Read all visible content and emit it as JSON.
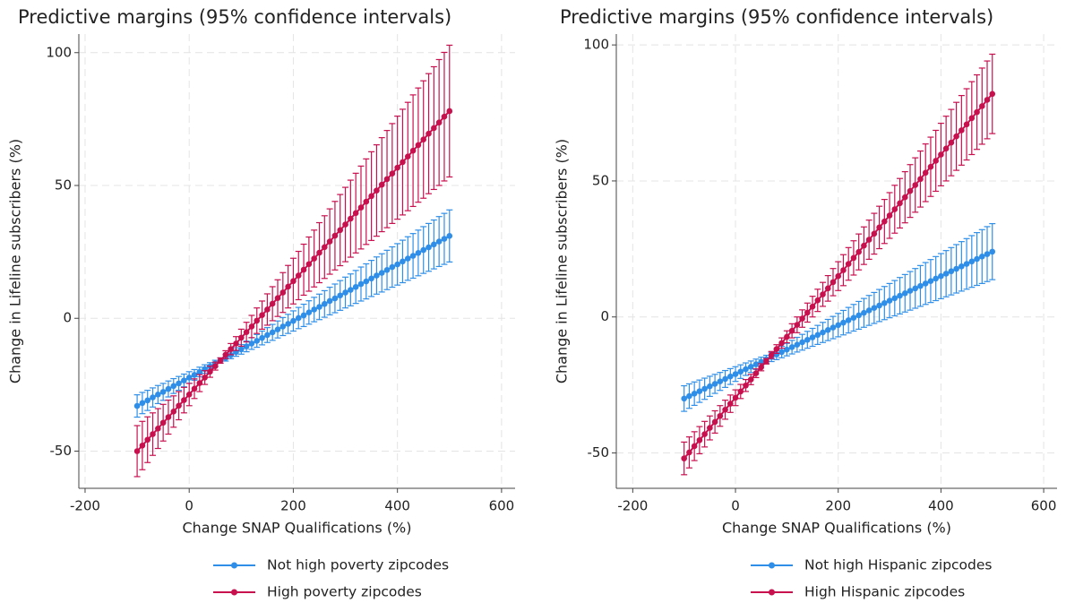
{
  "chart_data": [
    {
      "type": "line",
      "title": "Predictive margins (95% confidence intervals)",
      "xlabel": "Change SNAP Qualifications (%)",
      "ylabel": "Change in Lifeline subscribers (%)",
      "x": [
        -100,
        -90,
        -80,
        -70,
        -60,
        -50,
        -40,
        -30,
        -20,
        -10,
        0,
        10,
        20,
        30,
        40,
        50,
        60,
        70,
        80,
        90,
        100,
        110,
        120,
        130,
        140,
        150,
        160,
        170,
        180,
        190,
        200,
        210,
        220,
        230,
        240,
        250,
        260,
        270,
        280,
        290,
        300,
        310,
        320,
        330,
        340,
        350,
        360,
        370,
        380,
        390,
        400,
        410,
        420,
        430,
        440,
        450,
        460,
        470,
        480,
        490,
        500
      ],
      "series": [
        {
          "name": "Not high poverty zipcodes",
          "color": "#2f8fe8",
          "values": [
            -33.0,
            -31.9,
            -30.9,
            -29.8,
            -28.7,
            -27.7,
            -26.6,
            -25.5,
            -24.5,
            -23.4,
            -22.3,
            -21.3,
            -20.2,
            -19.1,
            -18.1,
            -17.0,
            -15.9,
            -14.9,
            -13.8,
            -12.7,
            -11.7,
            -10.6,
            -9.5,
            -8.5,
            -7.4,
            -6.3,
            -5.3,
            -4.2,
            -3.1,
            -2.1,
            -1.0,
            0.1,
            1.1,
            2.2,
            3.3,
            4.3,
            5.4,
            6.5,
            7.5,
            8.6,
            9.7,
            10.7,
            11.8,
            12.9,
            13.9,
            15.0,
            16.1,
            17.1,
            18.2,
            19.3,
            20.3,
            21.4,
            22.5,
            23.5,
            24.6,
            25.7,
            26.7,
            27.8,
            28.9,
            29.9,
            31.0
          ],
          "errors": [
            4.2,
            4.0,
            3.8,
            3.6,
            3.4,
            3.2,
            3.0,
            2.8,
            2.6,
            2.4,
            2.2,
            2.0,
            1.8,
            1.6,
            1.4,
            1.2,
            1.0,
            1.2,
            1.4,
            1.6,
            1.8,
            2.0,
            2.2,
            2.4,
            2.6,
            2.8,
            3.0,
            3.2,
            3.4,
            3.6,
            3.8,
            4.0,
            4.2,
            4.4,
            4.6,
            4.8,
            5.0,
            5.2,
            5.4,
            5.6,
            5.8,
            6.0,
            6.2,
            6.4,
            6.6,
            6.8,
            7.0,
            7.2,
            7.4,
            7.6,
            7.8,
            8.0,
            8.2,
            8.4,
            8.6,
            8.8,
            9.0,
            9.2,
            9.4,
            9.6,
            9.8
          ]
        },
        {
          "name": "High poverty zipcodes",
          "color": "#c8104f",
          "values": [
            -50.0,
            -47.9,
            -45.7,
            -43.6,
            -41.5,
            -39.3,
            -37.2,
            -35.1,
            -32.9,
            -30.8,
            -28.7,
            -26.5,
            -24.4,
            -22.3,
            -20.1,
            -18.0,
            -15.9,
            -13.7,
            -11.6,
            -9.5,
            -7.3,
            -5.2,
            -3.1,
            -0.9,
            1.2,
            3.3,
            5.5,
            7.6,
            9.7,
            11.9,
            14.0,
            16.1,
            18.3,
            20.4,
            22.5,
            24.7,
            26.8,
            28.9,
            31.1,
            33.2,
            35.3,
            37.5,
            39.6,
            41.7,
            43.9,
            46.0,
            48.1,
            50.3,
            52.4,
            54.5,
            56.7,
            58.8,
            60.9,
            63.1,
            65.2,
            67.3,
            69.5,
            71.6,
            73.7,
            75.9,
            78.0
          ],
          "errors": [
            9.6,
            9.1,
            8.6,
            8.0,
            7.5,
            6.9,
            6.4,
            5.9,
            5.3,
            4.8,
            4.2,
            3.7,
            3.2,
            2.6,
            2.1,
            1.5,
            1.0,
            1.5,
            2.1,
            2.6,
            3.2,
            3.7,
            4.2,
            4.8,
            5.3,
            5.9,
            6.4,
            6.9,
            7.5,
            8.0,
            8.6,
            9.1,
            9.6,
            10.2,
            10.7,
            11.3,
            11.8,
            12.3,
            12.9,
            13.4,
            14.0,
            14.5,
            15.0,
            15.6,
            16.1,
            16.7,
            17.2,
            17.7,
            18.3,
            18.8,
            19.4,
            19.9,
            20.4,
            21.0,
            21.5,
            22.1,
            22.6,
            23.1,
            23.7,
            24.2,
            24.8
          ]
        }
      ],
      "xlim": [
        -212,
        626
      ],
      "ylim": [
        -64,
        107
      ],
      "xticks": [
        -200,
        0,
        200,
        400,
        600
      ],
      "yticks": [
        -50,
        0,
        50,
        100
      ],
      "grid": true,
      "legend": "bottom"
    },
    {
      "type": "line",
      "title": "Predictive margins (95% confidence intervals)",
      "xlabel": "Change SNAP Qualifications (%)",
      "ylabel": "Change in Lifeline subscribers (%)",
      "x": [
        -100,
        -90,
        -80,
        -70,
        -60,
        -50,
        -40,
        -30,
        -20,
        -10,
        0,
        10,
        20,
        30,
        40,
        50,
        60,
        70,
        80,
        90,
        100,
        110,
        120,
        130,
        140,
        150,
        160,
        170,
        180,
        190,
        200,
        210,
        220,
        230,
        240,
        250,
        260,
        270,
        280,
        290,
        300,
        310,
        320,
        330,
        340,
        350,
        360,
        370,
        380,
        390,
        400,
        410,
        420,
        430,
        440,
        450,
        460,
        470,
        480,
        490,
        500
      ],
      "series": [
        {
          "name": "Not high Hispanic zipcodes",
          "color": "#2f8fe8",
          "values": [
            -30.0,
            -29.1,
            -28.2,
            -27.3,
            -26.4,
            -25.5,
            -24.6,
            -23.7,
            -22.8,
            -21.9,
            -21.0,
            -20.1,
            -19.2,
            -18.3,
            -17.4,
            -16.5,
            -15.6,
            -14.7,
            -13.8,
            -12.9,
            -12.0,
            -11.1,
            -10.2,
            -9.3,
            -8.4,
            -7.5,
            -6.6,
            -5.7,
            -4.8,
            -3.9,
            -3.0,
            -2.1,
            -1.2,
            -0.3,
            0.6,
            1.5,
            2.4,
            3.3,
            4.2,
            5.1,
            6.0,
            6.9,
            7.8,
            8.7,
            9.6,
            10.5,
            11.4,
            12.3,
            13.2,
            14.1,
            15.0,
            15.9,
            16.8,
            17.7,
            18.6,
            19.5,
            20.4,
            21.3,
            22.2,
            23.1,
            24.0
          ],
          "errors": [
            4.7,
            4.5,
            4.3,
            4.1,
            3.9,
            3.7,
            3.5,
            3.3,
            3.1,
            2.9,
            2.7,
            2.5,
            2.3,
            2.1,
            1.9,
            1.7,
            1.5,
            1.7,
            1.9,
            2.1,
            2.3,
            2.5,
            2.7,
            2.9,
            3.1,
            3.3,
            3.5,
            3.7,
            3.9,
            4.1,
            4.3,
            4.5,
            4.7,
            4.9,
            5.1,
            5.3,
            5.5,
            5.7,
            5.9,
            6.1,
            6.3,
            6.5,
            6.7,
            6.9,
            7.1,
            7.3,
            7.5,
            7.7,
            7.9,
            8.1,
            8.3,
            8.5,
            8.7,
            8.9,
            9.1,
            9.3,
            9.5,
            9.7,
            9.9,
            10.1,
            10.3
          ]
        },
        {
          "name": "High Hispanic zipcodes",
          "color": "#c8104f",
          "values": [
            -52.0,
            -49.8,
            -47.5,
            -45.3,
            -43.1,
            -40.8,
            -38.6,
            -36.4,
            -34.1,
            -31.9,
            -29.7,
            -27.4,
            -25.2,
            -23.0,
            -20.7,
            -18.5,
            -16.3,
            -14.0,
            -11.8,
            -9.6,
            -7.3,
            -5.1,
            -2.9,
            -0.6,
            1.6,
            3.8,
            6.1,
            8.3,
            10.5,
            12.8,
            15.0,
            17.2,
            19.5,
            21.7,
            23.9,
            26.2,
            28.4,
            30.6,
            32.9,
            35.1,
            37.3,
            39.6,
            41.8,
            44.0,
            46.3,
            48.5,
            50.7,
            53.0,
            55.2,
            57.4,
            59.7,
            61.9,
            64.1,
            66.4,
            68.6,
            70.8,
            73.1,
            75.3,
            77.5,
            79.8,
            82.0
          ],
          "errors": [
            6.0,
            5.7,
            5.3,
            5.0,
            4.7,
            4.4,
            4.1,
            3.8,
            3.5,
            3.2,
            2.9,
            2.6,
            2.2,
            1.9,
            1.6,
            1.3,
            1.0,
            1.3,
            1.6,
            1.9,
            2.2,
            2.6,
            2.9,
            3.2,
            3.5,
            3.8,
            4.1,
            4.4,
            4.7,
            5.0,
            5.3,
            5.7,
            6.0,
            6.3,
            6.6,
            6.9,
            7.2,
            7.5,
            7.8,
            8.1,
            8.4,
            8.8,
            9.1,
            9.4,
            9.7,
            10.0,
            10.3,
            10.6,
            10.9,
            11.2,
            11.5,
            11.9,
            12.2,
            12.5,
            12.8,
            13.1,
            13.4,
            13.7,
            14.0,
            14.3,
            14.6
          ]
        }
      ],
      "xlim": [
        -232,
        626
      ],
      "ylim": [
        -63,
        104
      ],
      "xticks": [
        -200,
        0,
        200,
        400,
        600
      ],
      "yticks": [
        -50,
        0,
        50,
        100
      ],
      "grid": true,
      "legend": "bottom"
    }
  ]
}
